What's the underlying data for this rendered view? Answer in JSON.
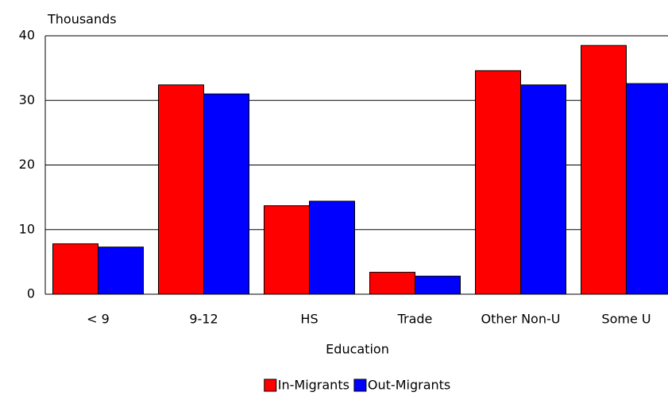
{
  "chart_data": {
    "type": "bar",
    "ylabel": "Thousands",
    "xlabel": "Education",
    "categories": [
      "< 9",
      "9-12",
      "HS",
      "Trade",
      "Other Non-U",
      "Some U"
    ],
    "series": [
      {
        "name": "In-Migrants",
        "color": "#ff0000",
        "values": [
          7.8,
          32.4,
          13.7,
          3.4,
          34.6,
          38.5
        ]
      },
      {
        "name": "Out-Migrants",
        "color": "#0000ff",
        "values": [
          7.3,
          31.0,
          14.4,
          2.8,
          32.4,
          32.6
        ]
      }
    ],
    "ylim": [
      0,
      40
    ],
    "yticks": [
      0,
      10,
      20,
      30,
      40
    ],
    "grid": true,
    "legend": "bottom"
  }
}
